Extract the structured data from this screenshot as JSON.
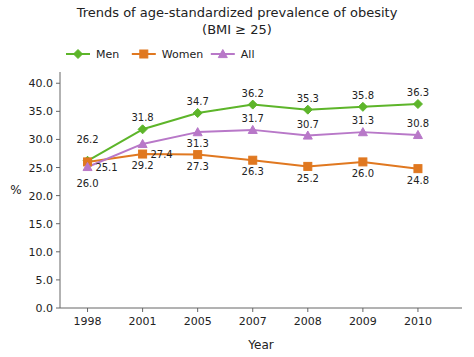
{
  "chart_data": {
    "type": "line",
    "title": "Trends of age-standardized prevalence of obesity",
    "subtitle": "(BMI ≥ 25)",
    "x_label": "Year",
    "y_label": "%",
    "categories": [
      "1998",
      "2001",
      "2005",
      "2007",
      "2008",
      "2009",
      "2010"
    ],
    "series": [
      {
        "name": "Men",
        "color": "#5db52a",
        "marker": "diamond",
        "line_style": "solid",
        "values": [
          26.2,
          31.8,
          34.7,
          36.2,
          35.3,
          35.8,
          36.3
        ]
      },
      {
        "name": "Women",
        "color": "#e07820",
        "marker": "square",
        "line_style": "solid",
        "values": [
          26.0,
          27.4,
          27.3,
          26.3,
          25.2,
          26.0,
          24.8
        ],
        "value_labels": [
          "26.0",
          "27.4",
          "27.3",
          "26.3",
          "25.2",
          "26.0",
          "24.8"
        ]
      },
      {
        "name": "All",
        "color": "#b878c8",
        "marker": "triangle",
        "line_style": "solid",
        "values": [
          25.1,
          29.2,
          31.3,
          31.7,
          30.7,
          31.3,
          30.8
        ]
      }
    ],
    "ylim": [
      0,
      42
    ],
    "yticks": [
      {
        "value": 0,
        "label": "0.0"
      },
      {
        "value": 5,
        "label": "5.0"
      },
      {
        "value": 10,
        "label": "10.0"
      },
      {
        "value": 15,
        "label": "15.0"
      },
      {
        "value": 20,
        "label": "20.0"
      },
      {
        "value": 25,
        "label": "25.0"
      },
      {
        "value": 30,
        "label": "30.0"
      },
      {
        "value": 35,
        "label": "35.0"
      },
      {
        "value": 40,
        "label": "40.0"
      }
    ],
    "grid": false,
    "legend": "upper left",
    "data_labels": true
  }
}
